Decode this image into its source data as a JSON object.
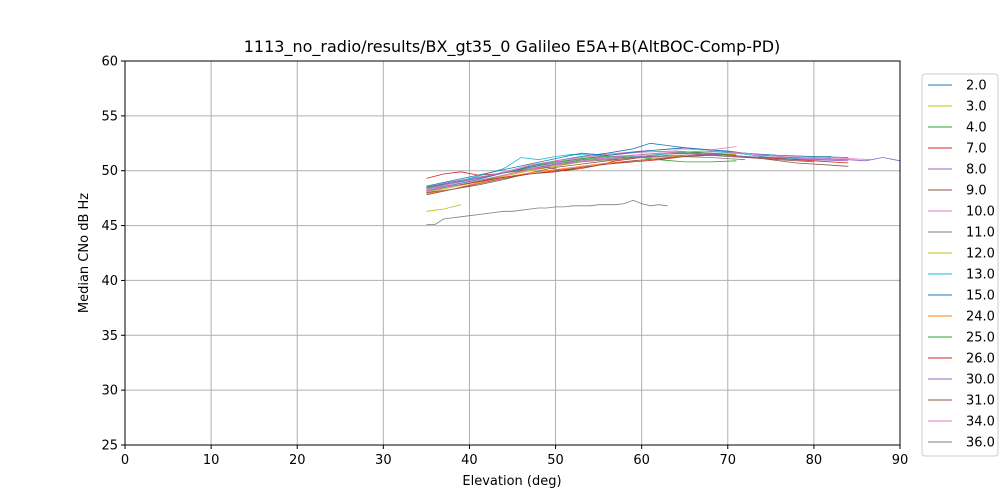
{
  "chart_data": {
    "type": "line",
    "title": "1113_no_radio/results/BX_gt35_0 Galileo E5A+B(AltBOC-Comp-PD)",
    "xlabel": "Elevation (deg)",
    "ylabel": "Median CNo dB Hz",
    "xlim": [
      0,
      90
    ],
    "ylim": [
      25,
      60
    ],
    "xticks": [
      0,
      10,
      20,
      30,
      40,
      50,
      60,
      70,
      80,
      90
    ],
    "yticks": [
      25,
      30,
      35,
      40,
      45,
      50,
      55,
      60
    ],
    "grid": true,
    "legend_position": "right-outside",
    "series": [
      {
        "name": "2.0",
        "color": "#1f77b4",
        "points": [
          [
            35,
            48.3
          ],
          [
            38,
            48.7
          ],
          [
            41,
            49.2
          ],
          [
            44,
            49.8
          ],
          [
            47,
            50.4
          ],
          [
            50,
            50.9
          ],
          [
            53,
            51.3
          ],
          [
            56,
            51.6
          ],
          [
            59,
            52.0
          ],
          [
            61,
            52.5
          ],
          [
            63,
            52.3
          ],
          [
            66,
            52.0
          ],
          [
            70,
            51.8
          ],
          [
            74,
            51.4
          ],
          [
            78,
            51.2
          ],
          [
            82,
            51.3
          ]
        ]
      },
      {
        "name": "3.0",
        "color": "#bcbd22",
        "points": [
          [
            35,
            48.0
          ],
          [
            38,
            48.5
          ],
          [
            41,
            49.0
          ],
          [
            44,
            49.5
          ],
          [
            47,
            50.0
          ],
          [
            50,
            50.4
          ],
          [
            53,
            50.8
          ],
          [
            56,
            51.0
          ],
          [
            60,
            51.2
          ],
          [
            64,
            51.3
          ],
          [
            68,
            51.4
          ],
          [
            71,
            51.5
          ]
        ]
      },
      {
        "name": "4.0",
        "color": "#2ca02c",
        "points": [
          [
            35,
            48.2
          ],
          [
            38,
            48.6
          ],
          [
            41,
            49.0
          ],
          [
            44,
            49.6
          ],
          [
            47,
            50.1
          ],
          [
            50,
            50.6
          ],
          [
            53,
            51.0
          ],
          [
            56,
            51.2
          ],
          [
            59,
            51.3
          ],
          [
            62,
            51.0
          ],
          [
            65,
            50.8
          ],
          [
            68,
            50.8
          ],
          [
            71,
            50.9
          ]
        ]
      },
      {
        "name": "7.0",
        "color": "#d62728",
        "points": [
          [
            35,
            49.3
          ],
          [
            37,
            49.7
          ],
          [
            39,
            49.9
          ],
          [
            41,
            49.6
          ],
          [
            43,
            49.7
          ],
          [
            45,
            49.9
          ],
          [
            47,
            50.1
          ],
          [
            49,
            50.3
          ],
          [
            51,
            50.0
          ],
          [
            53,
            50.2
          ],
          [
            55,
            50.5
          ],
          [
            57,
            50.9
          ],
          [
            60,
            51.2
          ],
          [
            63,
            51.4
          ]
        ]
      },
      {
        "name": "8.0",
        "color": "#9467bd",
        "points": [
          [
            35,
            48.5
          ],
          [
            38,
            49.0
          ],
          [
            41,
            49.4
          ],
          [
            44,
            49.8
          ],
          [
            47,
            50.3
          ],
          [
            50,
            50.7
          ],
          [
            53,
            51.1
          ],
          [
            56,
            51.4
          ],
          [
            60,
            51.7
          ],
          [
            64,
            51.8
          ],
          [
            68,
            51.6
          ],
          [
            72,
            51.3
          ],
          [
            76,
            51.1
          ],
          [
            80,
            51.0
          ],
          [
            84,
            50.9
          ]
        ]
      },
      {
        "name": "9.0",
        "color": "#8c564b",
        "points": [
          [
            35,
            48.0
          ],
          [
            38,
            48.3
          ],
          [
            41,
            48.7
          ],
          [
            44,
            49.2
          ],
          [
            47,
            49.8
          ],
          [
            50,
            50.3
          ],
          [
            53,
            50.6
          ],
          [
            56,
            50.9
          ],
          [
            59,
            51.2
          ],
          [
            62,
            51.5
          ],
          [
            66,
            51.6
          ],
          [
            70,
            51.4
          ],
          [
            74,
            51.1
          ],
          [
            78,
            50.7
          ],
          [
            82,
            50.5
          ],
          [
            84,
            50.4
          ]
        ]
      },
      {
        "name": "10.0",
        "color": "#e377c2",
        "points": [
          [
            35,
            48.3
          ],
          [
            38,
            48.8
          ],
          [
            41,
            49.3
          ],
          [
            44,
            49.9
          ],
          [
            47,
            50.5
          ],
          [
            50,
            50.9
          ],
          [
            53,
            51.2
          ],
          [
            56,
            51.5
          ],
          [
            60,
            51.8
          ],
          [
            64,
            52.0
          ],
          [
            68,
            51.9
          ],
          [
            71,
            52.2
          ]
        ]
      },
      {
        "name": "11.0",
        "color": "#7f7f7f",
        "points": [
          [
            35,
            48.1
          ],
          [
            38,
            48.6
          ],
          [
            41,
            49.1
          ],
          [
            44,
            49.6
          ],
          [
            47,
            50.1
          ],
          [
            50,
            50.5
          ],
          [
            53,
            50.8
          ],
          [
            56,
            51.0
          ],
          [
            60,
            51.2
          ],
          [
            64,
            51.3
          ],
          [
            68,
            51.2
          ],
          [
            72,
            51.0
          ]
        ]
      },
      {
        "name": "12.0",
        "color": "#bcbd22",
        "points": [
          [
            35,
            46.3
          ],
          [
            36,
            46.4
          ],
          [
            37,
            46.5
          ],
          [
            38,
            46.7
          ],
          [
            39,
            46.9
          ]
        ]
      },
      {
        "name": "13.0",
        "color": "#17becf",
        "points": [
          [
            35,
            48.4
          ],
          [
            38,
            48.9
          ],
          [
            41,
            49.5
          ],
          [
            44,
            50.2
          ],
          [
            46,
            51.2
          ],
          [
            48,
            51.0
          ],
          [
            50,
            51.3
          ],
          [
            52,
            51.5
          ],
          [
            55,
            51.4
          ],
          [
            58,
            51.2
          ],
          [
            61,
            51.4
          ],
          [
            64,
            51.6
          ],
          [
            67,
            51.8
          ],
          [
            71,
            51.6
          ],
          [
            75,
            51.2
          ],
          [
            79,
            51.0
          ],
          [
            82,
            51.1
          ]
        ]
      },
      {
        "name": "15.0",
        "color": "#1f77b4",
        "points": [
          [
            35,
            48.6
          ],
          [
            38,
            49.1
          ],
          [
            41,
            49.6
          ],
          [
            44,
            50.1
          ],
          [
            47,
            50.6
          ],
          [
            50,
            51.1
          ],
          [
            53,
            51.6
          ],
          [
            56,
            51.4
          ],
          [
            59,
            51.7
          ],
          [
            62,
            51.9
          ],
          [
            65,
            52.1
          ],
          [
            68,
            51.9
          ],
          [
            72,
            51.6
          ],
          [
            76,
            51.4
          ],
          [
            80,
            51.3
          ],
          [
            84,
            51.2
          ]
        ]
      },
      {
        "name": "24.0",
        "color": "#ff7f0e",
        "points": [
          [
            35,
            47.9
          ],
          [
            38,
            48.3
          ],
          [
            41,
            48.9
          ],
          [
            44,
            49.4
          ],
          [
            47,
            49.8
          ],
          [
            50,
            50.1
          ],
          [
            53,
            50.4
          ],
          [
            56,
            50.7
          ],
          [
            59,
            50.9
          ],
          [
            62,
            51.1
          ],
          [
            65,
            51.4
          ],
          [
            68,
            51.6
          ],
          [
            71,
            51.5
          ]
        ]
      },
      {
        "name": "25.0",
        "color": "#2ca02c",
        "points": [
          [
            35,
            48.5
          ],
          [
            38,
            48.9
          ],
          [
            41,
            49.3
          ],
          [
            44,
            49.8
          ],
          [
            47,
            50.3
          ],
          [
            50,
            50.8
          ],
          [
            53,
            51.1
          ],
          [
            56,
            51.3
          ],
          [
            59,
            51.4
          ],
          [
            62,
            51.6
          ],
          [
            65,
            51.7
          ],
          [
            68,
            51.6
          ],
          [
            71,
            51.4
          ]
        ]
      },
      {
        "name": "26.0",
        "color": "#d62728",
        "points": [
          [
            35,
            48.2
          ],
          [
            38,
            48.6
          ],
          [
            41,
            49.0
          ],
          [
            44,
            49.4
          ],
          [
            47,
            49.7
          ],
          [
            50,
            49.9
          ],
          [
            53,
            50.3
          ],
          [
            56,
            50.6
          ],
          [
            59,
            50.8
          ],
          [
            62,
            51.0
          ],
          [
            65,
            51.3
          ],
          [
            68,
            51.5
          ],
          [
            72,
            51.3
          ],
          [
            76,
            51.1
          ],
          [
            80,
            50.9
          ],
          [
            84,
            50.7
          ]
        ]
      },
      {
        "name": "30.0",
        "color": "#9467bd",
        "points": [
          [
            35,
            48.4
          ],
          [
            38,
            48.9
          ],
          [
            41,
            49.3
          ],
          [
            44,
            49.8
          ],
          [
            47,
            50.2
          ],
          [
            50,
            50.6
          ],
          [
            53,
            50.9
          ],
          [
            56,
            51.1
          ],
          [
            60,
            51.3
          ],
          [
            64,
            51.4
          ],
          [
            68,
            51.5
          ],
          [
            72,
            51.3
          ],
          [
            76,
            51.2
          ],
          [
            80,
            51.1
          ],
          [
            84,
            51.0
          ],
          [
            86,
            50.9
          ],
          [
            88,
            51.2
          ],
          [
            90,
            50.9
          ]
        ]
      },
      {
        "name": "31.0",
        "color": "#8c564b",
        "points": [
          [
            35,
            47.8
          ],
          [
            38,
            48.3
          ],
          [
            41,
            48.8
          ],
          [
            44,
            49.3
          ],
          [
            47,
            49.7
          ],
          [
            50,
            50.0
          ],
          [
            53,
            50.3
          ],
          [
            56,
            50.6
          ],
          [
            59,
            50.9
          ],
          [
            62,
            51.1
          ],
          [
            65,
            51.3
          ],
          [
            68,
            51.4
          ],
          [
            72,
            51.2
          ],
          [
            76,
            51.0
          ],
          [
            80,
            50.8
          ]
        ]
      },
      {
        "name": "34.0",
        "color": "#e377c2",
        "points": [
          [
            35,
            48.2
          ],
          [
            38,
            48.6
          ],
          [
            41,
            49.1
          ],
          [
            44,
            49.6
          ],
          [
            47,
            50.1
          ],
          [
            50,
            50.5
          ],
          [
            53,
            50.9
          ],
          [
            56,
            51.2
          ],
          [
            60,
            51.5
          ],
          [
            64,
            51.7
          ],
          [
            68,
            51.8
          ],
          [
            72,
            51.6
          ],
          [
            76,
            51.3
          ],
          [
            80,
            51.2
          ],
          [
            84,
            51.1
          ],
          [
            87,
            51.0
          ]
        ]
      },
      {
        "name": "36.0",
        "color": "#7f7f7f",
        "points": [
          [
            35,
            45.1
          ],
          [
            36,
            45.1
          ],
          [
            37,
            45.6
          ],
          [
            38,
            45.7
          ],
          [
            39,
            45.8
          ],
          [
            40,
            45.9
          ],
          [
            41,
            46.0
          ],
          [
            42,
            46.1
          ],
          [
            43,
            46.2
          ],
          [
            44,
            46.3
          ],
          [
            45,
            46.3
          ],
          [
            46,
            46.4
          ],
          [
            47,
            46.5
          ],
          [
            48,
            46.6
          ],
          [
            49,
            46.6
          ],
          [
            50,
            46.7
          ],
          [
            51,
            46.7
          ],
          [
            52,
            46.8
          ],
          [
            53,
            46.8
          ],
          [
            54,
            46.8
          ],
          [
            55,
            46.9
          ],
          [
            56,
            46.9
          ],
          [
            57,
            46.9
          ],
          [
            58,
            47.0
          ],
          [
            59,
            47.3
          ],
          [
            60,
            47.0
          ],
          [
            61,
            46.8
          ],
          [
            62,
            46.9
          ],
          [
            63,
            46.8
          ]
        ]
      }
    ]
  }
}
